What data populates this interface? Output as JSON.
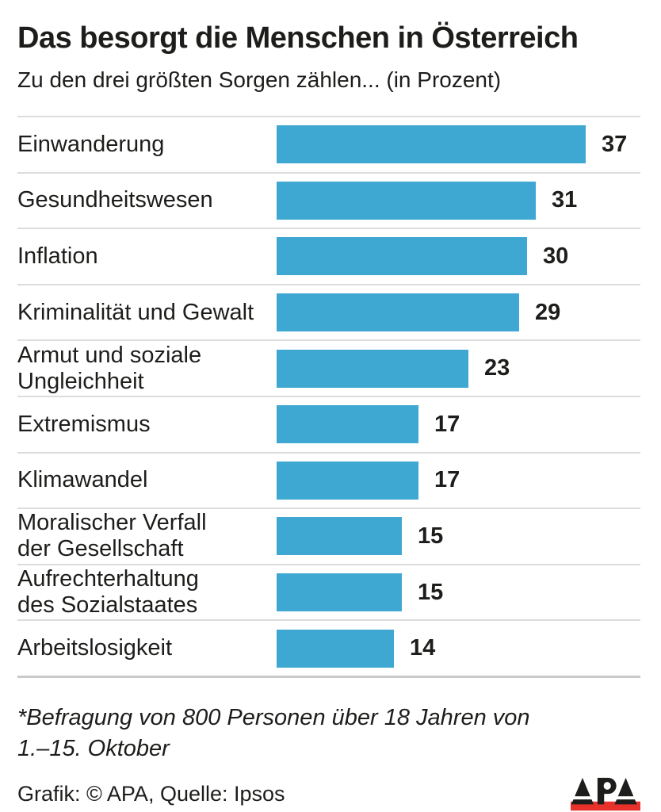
{
  "header": {
    "title": "Das besorgt die Menschen in Österreich",
    "subtitle": "Zu den drei größten Sorgen zählen... (in Prozent)"
  },
  "chart_data": {
    "type": "bar",
    "orientation": "horizontal",
    "title": "Das besorgt die Menschen in Österreich",
    "subtitle": "Zu den drei größten Sorgen zählen... (in Prozent)",
    "unit": "Prozent",
    "categories": [
      "Einwanderung",
      "Gesundheitswesen",
      "Inflation",
      "Kriminalität und Gewalt",
      "Armut und soziale Ungleichheit",
      "Extremismus",
      "Klimawandel",
      "Moralischer Verfall der Gesellschaft",
      "Aufrechterhaltung des Sozialstaates",
      "Arbeitslosigkeit"
    ],
    "display_lines": [
      [
        "Einwanderung"
      ],
      [
        "Gesundheitswesen"
      ],
      [
        "Inflation"
      ],
      [
        "Kriminalität und Gewalt"
      ],
      [
        "Armut und soziale",
        "Ungleichheit"
      ],
      [
        "Extremismus"
      ],
      [
        "Klimawandel"
      ],
      [
        "Moralischer Verfall",
        "der Gesellschaft"
      ],
      [
        "Aufrechterhaltung",
        "des Sozialstaates"
      ],
      [
        "Arbeitslosigkeit"
      ]
    ],
    "values": [
      37,
      31,
      30,
      29,
      23,
      17,
      17,
      15,
      15,
      14
    ],
    "xlim": [
      0,
      37
    ],
    "grid": false,
    "legend": false
  },
  "footnote": {
    "line1": "*Befragung von 800 Personen über 18 Jahren von",
    "line2": "1.–15. Oktober"
  },
  "footer": {
    "credit": "Grafik: © APA, Quelle: Ipsos",
    "logo_text": "APA"
  },
  "colors": {
    "bar": "#3ea8d3",
    "text": "#1d1d1b",
    "divider": "#dcdcdc",
    "divider_bottom": "#c9c9c9",
    "logo_red": "#e8312a",
    "logo_black": "#1d1d1b"
  }
}
